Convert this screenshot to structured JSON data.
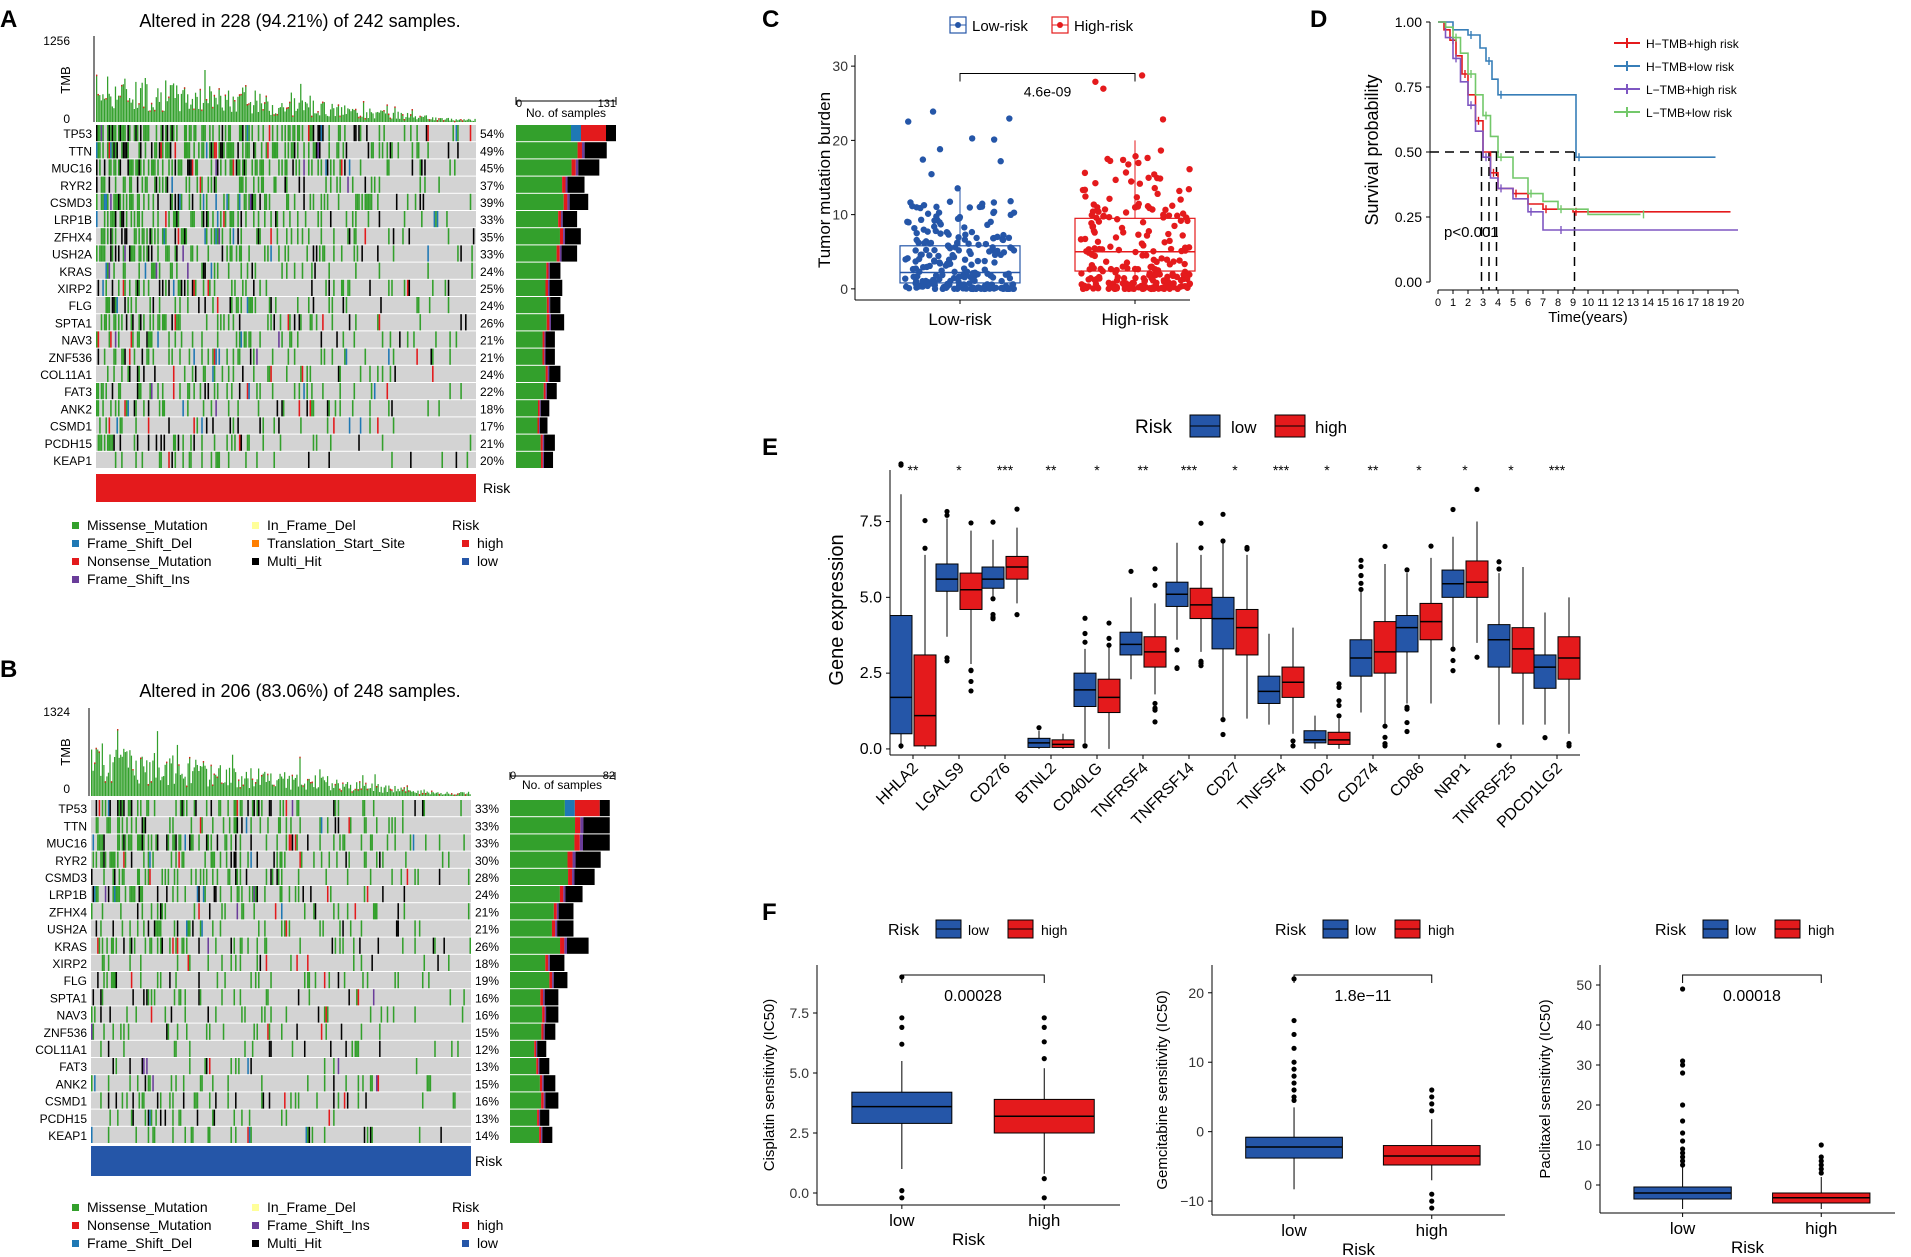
{
  "colors": {
    "low": "#2556A8",
    "high": "#E41A1C",
    "missense": "#33A02C",
    "frame_shift_del": "#1F78B4",
    "nonsense": "#E31A1C",
    "frame_shift_ins": "#6A3D9A",
    "in_frame_del": "#FFFF99",
    "translation_start": "#FF7F00",
    "multi_hit": "#000000",
    "grid": "#D3D3D3",
    "km_htmb_high": "#E41A1C",
    "km_htmb_low": "#377EB8",
    "km_ltmb_high": "#7E57C2",
    "km_ltmb_low": "#73C86A"
  },
  "panels": {
    "A": {
      "letter": "A",
      "title": "Altered in 228 (94.21%) of 242 samples.",
      "tmb_label": "TMB",
      "tmb_max": "1256",
      "tmb_min": "0",
      "samples_axis_min": "0",
      "samples_axis_max": "131",
      "samples_axis_label": "No. of samples",
      "risk_label": "Risk",
      "risk_group": "high"
    },
    "B": {
      "letter": "B",
      "title": "Altered in 206 (83.06%) of 248 samples.",
      "tmb_label": "TMB",
      "tmb_max": "1324",
      "tmb_min": "0",
      "samples_axis_min": "0",
      "samples_axis_max": "82",
      "samples_axis_label": "No. of samples",
      "risk_label": "Risk",
      "risk_group": "low"
    },
    "C": {
      "letter": "C"
    },
    "D": {
      "letter": "D"
    },
    "E": {
      "letter": "E"
    },
    "F": {
      "letter": "F"
    }
  },
  "legend_A": {
    "items_col1": [
      "Missense_Mutation",
      "Frame_Shift_Del",
      "Nonsense_Mutation",
      "Frame_Shift_Ins"
    ],
    "items_col2": [
      "In_Frame_Del",
      "Translation_Start_Site",
      "Multi_Hit"
    ],
    "risk_title": "Risk",
    "risk_items": [
      "high",
      "low"
    ]
  },
  "legend_B": {
    "items_col1": [
      "Missense_Mutation",
      "Nonsense_Mutation",
      "Frame_Shift_Del"
    ],
    "items_col2": [
      "In_Frame_Del",
      "Frame_Shift_Ins",
      "Multi_Hit"
    ],
    "risk_title": "Risk",
    "risk_items": [
      "high",
      "low"
    ]
  },
  "chart_data": [
    {
      "id": "A",
      "type": "oncoplot",
      "title": "Altered in 228 (94.21%) of 242 samples.",
      "genes": [
        "TP53",
        "TTN",
        "MUC16",
        "RYR2",
        "CSMD3",
        "LRP1B",
        "ZFHX4",
        "USH2A",
        "KRAS",
        "XIRP2",
        "FLG",
        "SPTA1",
        "NAV3",
        "ZNF536",
        "COL11A1",
        "FAT3",
        "ANK2",
        "CSMD1",
        "PCDH15",
        "KEAP1"
      ],
      "percentages": [
        "54%",
        "49%",
        "45%",
        "37%",
        "39%",
        "33%",
        "35%",
        "33%",
        "24%",
        "25%",
        "24%",
        "26%",
        "21%",
        "21%",
        "24%",
        "22%",
        "18%",
        "17%",
        "21%",
        "20%"
      ],
      "side_bar_max": 131,
      "risk": "high"
    },
    {
      "id": "B",
      "type": "oncoplot",
      "title": "Altered in 206 (83.06%) of 248 samples.",
      "genes": [
        "TP53",
        "TTN",
        "MUC16",
        "RYR2",
        "CSMD3",
        "LRP1B",
        "ZFHX4",
        "USH2A",
        "KRAS",
        "XIRP2",
        "FLG",
        "SPTA1",
        "NAV3",
        "ZNF536",
        "COL11A1",
        "FAT3",
        "ANK2",
        "CSMD1",
        "PCDH15",
        "KEAP1"
      ],
      "percentages": [
        "33%",
        "33%",
        "33%",
        "30%",
        "28%",
        "24%",
        "21%",
        "21%",
        "26%",
        "18%",
        "19%",
        "16%",
        "16%",
        "15%",
        "12%",
        "13%",
        "15%",
        "16%",
        "13%",
        "14%"
      ],
      "side_bar_max": 82,
      "risk": "low"
    },
    {
      "id": "C",
      "type": "boxplot",
      "legend": [
        "Low-risk",
        "High-risk"
      ],
      "categories": [
        "Low-risk",
        "High-risk"
      ],
      "ylabel": "Tumor mutation burden",
      "ylim": [
        -1.5,
        31.5
      ],
      "yticks": [
        0,
        10,
        20,
        30
      ],
      "boxes": [
        {
          "q1": 0.8,
          "median": 2.2,
          "q3": 5.8,
          "lower": 0,
          "upper": 13.5
        },
        {
          "q1": 2.4,
          "median": 5.0,
          "q3": 9.5,
          "lower": 0,
          "upper": 20
        }
      ],
      "pvalue": "4.6e-09"
    },
    {
      "id": "D",
      "type": "line",
      "xlabel": "Time(years)",
      "ylabel": "Survival probability",
      "xlim": [
        0,
        20
      ],
      "ylim": [
        0,
        1
      ],
      "xticks": [
        0,
        1,
        2,
        3,
        4,
        5,
        6,
        7,
        8,
        9,
        10,
        11,
        12,
        13,
        14,
        15,
        16,
        17,
        18,
        19,
        20
      ],
      "yticks": [
        "0.00",
        "0.25",
        "0.50",
        "0.75",
        "1.00"
      ],
      "pvalue": "p<0.001",
      "series": [
        {
          "name": "H−TMB+high risk",
          "color_key": "km_htmb_high",
          "points": [
            [
              0,
              1
            ],
            [
              0.4,
              0.97
            ],
            [
              0.8,
              0.93
            ],
            [
              1.2,
              0.87
            ],
            [
              1.6,
              0.8
            ],
            [
              2,
              0.72
            ],
            [
              2.5,
              0.62
            ],
            [
              3,
              0.5
            ],
            [
              3.5,
              0.42
            ],
            [
              4,
              0.36
            ],
            [
              5,
              0.34
            ],
            [
              6,
              0.3
            ],
            [
              7,
              0.28
            ],
            [
              8,
              0.28
            ],
            [
              9,
              0.27
            ],
            [
              19.5,
              0.27
            ]
          ]
        },
        {
          "name": "H−TMB+low risk",
          "color_key": "km_htmb_low",
          "points": [
            [
              0,
              1
            ],
            [
              1,
              0.97
            ],
            [
              2,
              0.95
            ],
            [
              2.8,
              0.9
            ],
            [
              3.2,
              0.85
            ],
            [
              3.6,
              0.78
            ],
            [
              4,
              0.72
            ],
            [
              9,
              0.72
            ],
            [
              9.2,
              0.48
            ],
            [
              18.5,
              0.48
            ]
          ]
        },
        {
          "name": "L−TMB+high risk",
          "color_key": "km_ltmb_high",
          "points": [
            [
              0,
              1
            ],
            [
              0.5,
              0.94
            ],
            [
              1,
              0.86
            ],
            [
              1.5,
              0.77
            ],
            [
              2,
              0.68
            ],
            [
              2.5,
              0.58
            ],
            [
              3,
              0.48
            ],
            [
              3.5,
              0.4
            ],
            [
              4,
              0.36
            ],
            [
              5,
              0.32
            ],
            [
              6,
              0.27
            ],
            [
              7,
              0.2
            ],
            [
              8,
              0.2
            ],
            [
              20,
              0.2
            ]
          ]
        },
        {
          "name": "L−TMB+low risk",
          "color_key": "km_ltmb_low",
          "points": [
            [
              0,
              1
            ],
            [
              0.5,
              0.98
            ],
            [
              1,
              0.94
            ],
            [
              1.5,
              0.88
            ],
            [
              2,
              0.8
            ],
            [
              2.5,
              0.72
            ],
            [
              3,
              0.64
            ],
            [
              3.5,
              0.56
            ],
            [
              4,
              0.48
            ],
            [
              5,
              0.4
            ],
            [
              6,
              0.34
            ],
            [
              7,
              0.31
            ],
            [
              8,
              0.28
            ],
            [
              10,
              0.26
            ],
            [
              13.5,
              0.26
            ]
          ]
        }
      ],
      "median_times": [
        2.9,
        3.4,
        3.9,
        9.1
      ]
    },
    {
      "id": "E",
      "type": "boxplot",
      "legend_title": "Risk",
      "legend": [
        "low",
        "high"
      ],
      "ylabel": "Gene expression",
      "ylim": [
        -0.2,
        9.2
      ],
      "yticks": [
        "0.0",
        "2.5",
        "5.0",
        "7.5"
      ],
      "categories": [
        "HHLA2",
        "LGALS9",
        "CD276",
        "BTNL2",
        "CD40LG",
        "TNFRSF4",
        "TNFRSF14",
        "CD27",
        "TNFSF4",
        "IDO2",
        "CD274",
        "CD86",
        "NRP1",
        "TNFRSF25",
        "PDCD1LG2"
      ],
      "significance": [
        "**",
        "*",
        "***",
        "**",
        "*",
        "**",
        "***",
        "*",
        "***",
        "*",
        "**",
        "*",
        "*",
        "*",
        "***"
      ],
      "series": [
        {
          "name": "low",
          "boxes": [
            {
              "q1": 0.5,
              "median": 1.7,
              "q3": 4.4,
              "lower": 0,
              "upper": 8.4
            },
            {
              "q1": 5.2,
              "median": 5.6,
              "q3": 6.1,
              "lower": 3.7,
              "upper": 7.6
            },
            {
              "q1": 5.3,
              "median": 5.6,
              "q3": 6.0,
              "lower": 5.0,
              "upper": 6.9
            },
            {
              "q1": 0.05,
              "median": 0.2,
              "q3": 0.35,
              "lower": 0,
              "upper": 0.6
            },
            {
              "q1": 1.4,
              "median": 1.95,
              "q3": 2.5,
              "lower": 0.2,
              "upper": 3.3
            },
            {
              "q1": 3.1,
              "median": 3.45,
              "q3": 3.85,
              "lower": 2.3,
              "upper": 5.0
            },
            {
              "q1": 4.7,
              "median": 5.1,
              "q3": 5.5,
              "lower": 3.6,
              "upper": 6.8
            },
            {
              "q1": 3.3,
              "median": 4.3,
              "q3": 5.0,
              "lower": 1.0,
              "upper": 6.8
            },
            {
              "q1": 1.5,
              "median": 1.9,
              "q3": 2.4,
              "lower": 0.8,
              "upper": 3.8
            },
            {
              "q1": 0.2,
              "median": 0.3,
              "q3": 0.6,
              "lower": 0,
              "upper": 1.1
            },
            {
              "q1": 2.4,
              "median": 3.0,
              "q3": 3.6,
              "lower": 1.2,
              "upper": 5.2
            },
            {
              "q1": 3.2,
              "median": 4.0,
              "q3": 4.4,
              "lower": 1.5,
              "upper": 5.8
            },
            {
              "q1": 5.0,
              "median": 5.45,
              "q3": 5.9,
              "lower": 3.3,
              "upper": 7.0
            },
            {
              "q1": 2.7,
              "median": 3.6,
              "q3": 4.1,
              "lower": 0.8,
              "upper": 5.8
            },
            {
              "q1": 2.0,
              "median": 2.7,
              "q3": 3.1,
              "lower": 0.8,
              "upper": 4.5
            }
          ]
        },
        {
          "name": "high",
          "boxes": [
            {
              "q1": 0.1,
              "median": 1.1,
              "q3": 3.1,
              "lower": 0,
              "upper": 6.4
            },
            {
              "q1": 4.6,
              "median": 5.25,
              "q3": 5.8,
              "lower": 2.8,
              "upper": 7.2
            },
            {
              "q1": 5.6,
              "median": 6.0,
              "q3": 6.35,
              "lower": 4.8,
              "upper": 7.3
            },
            {
              "q1": 0.05,
              "median": 0.15,
              "q3": 0.3,
              "lower": 0,
              "upper": 0.5
            },
            {
              "q1": 1.2,
              "median": 1.7,
              "q3": 2.3,
              "lower": 0,
              "upper": 3.4
            },
            {
              "q1": 2.7,
              "median": 3.2,
              "q3": 3.7,
              "lower": 1.8,
              "upper": 4.8
            },
            {
              "q1": 4.3,
              "median": 4.75,
              "q3": 5.3,
              "lower": 3.2,
              "upper": 6.4
            },
            {
              "q1": 3.1,
              "median": 4.0,
              "q3": 4.6,
              "lower": 1.0,
              "upper": 6.4
            },
            {
              "q1": 1.7,
              "median": 2.2,
              "q3": 2.7,
              "lower": 0.5,
              "upper": 4.0
            },
            {
              "q1": 0.15,
              "median": 0.3,
              "q3": 0.55,
              "lower": 0,
              "upper": 1.0
            },
            {
              "q1": 2.5,
              "median": 3.2,
              "q3": 4.2,
              "lower": 0.8,
              "upper": 6.1
            },
            {
              "q1": 3.6,
              "median": 4.2,
              "q3": 4.8,
              "lower": 1.5,
              "upper": 6.3
            },
            {
              "q1": 5.0,
              "median": 5.5,
              "q3": 6.2,
              "lower": 3.5,
              "upper": 7.5
            },
            {
              "q1": 2.5,
              "median": 3.3,
              "q3": 4.0,
              "lower": 0.8,
              "upper": 6.0
            },
            {
              "q1": 2.3,
              "median": 3.0,
              "q3": 3.7,
              "lower": 0.5,
              "upper": 5.0
            }
          ]
        }
      ]
    },
    {
      "id": "F1",
      "type": "boxplot",
      "legend_title": "Risk",
      "legend": [
        "low",
        "high"
      ],
      "categories": [
        "low",
        "high"
      ],
      "xlabel": "Risk",
      "ylabel": "Cisplatin sensitivity (IC50)",
      "ylim": [
        -0.5,
        9.5
      ],
      "yticks": [
        "0.0",
        "2.5",
        "5.0",
        "7.5"
      ],
      "boxes": [
        {
          "q1": 2.9,
          "median": 3.6,
          "q3": 4.2,
          "lower": 1.0,
          "upper": 5.5
        },
        {
          "q1": 2.5,
          "median": 3.2,
          "q3": 3.9,
          "lower": 0.8,
          "upper": 5.2
        }
      ],
      "pvalue": "0.00028"
    },
    {
      "id": "F2",
      "type": "boxplot",
      "legend_title": "Risk",
      "legend": [
        "low",
        "high"
      ],
      "categories": [
        "low",
        "high"
      ],
      "xlabel": "Risk",
      "ylabel": "Gemcitabine sensitivity (IC50)",
      "ylim": [
        -12,
        24
      ],
      "yticks": [
        "−10",
        "0",
        "10",
        "20"
      ],
      "boxes": [
        {
          "q1": -3.8,
          "median": -2.2,
          "q3": -0.8,
          "lower": -8.3,
          "upper": 3.5
        },
        {
          "q1": -4.8,
          "median": -3.5,
          "q3": -2.0,
          "lower": -7.0,
          "upper": 1.8
        }
      ],
      "pvalue": "1.8e−11"
    },
    {
      "id": "F3",
      "type": "boxplot",
      "legend_title": "Risk",
      "legend": [
        "low",
        "high"
      ],
      "categories": [
        "low",
        "high"
      ],
      "xlabel": "Risk",
      "ylabel": "Paclitaxel sensitivity (IC50)",
      "ylim": [
        -7,
        55
      ],
      "yticks": [
        "0",
        "10",
        "20",
        "30",
        "40",
        "50"
      ],
      "boxes": [
        {
          "q1": -3.5,
          "median": -2.0,
          "q3": -0.5,
          "lower": -6.0,
          "upper": 4.5
        },
        {
          "q1": -4.5,
          "median": -3.2,
          "q3": -2.0,
          "lower": -6.0,
          "upper": 2.0
        }
      ],
      "pvalue": "0.00018"
    }
  ]
}
